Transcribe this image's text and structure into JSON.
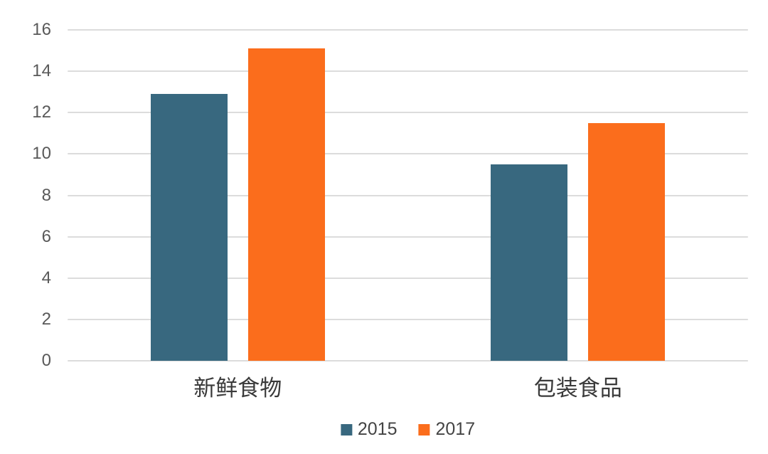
{
  "chart_data": {
    "type": "bar",
    "title": "",
    "xlabel": "",
    "ylabel": "",
    "categories": [
      "新鲜食物",
      "包装食品"
    ],
    "series": [
      {
        "name": "2015",
        "color": "#38687F",
        "values": [
          12.9,
          9.5
        ]
      },
      {
        "name": "2017",
        "color": "#FB6D1C",
        "values": [
          15.1,
          11.5
        ]
      }
    ],
    "ylim": [
      0,
      16
    ],
    "yticks": [
      0,
      2,
      4,
      6,
      8,
      10,
      12,
      14,
      16
    ],
    "grid": true,
    "legend_position": "bottom"
  },
  "style": {
    "background_color": "#ffffff",
    "gridline_color": "#dcdcdc",
    "tick_label_color": "#595959",
    "category_label_color": "#3a3a3a",
    "legend_label_color": "#444444"
  }
}
